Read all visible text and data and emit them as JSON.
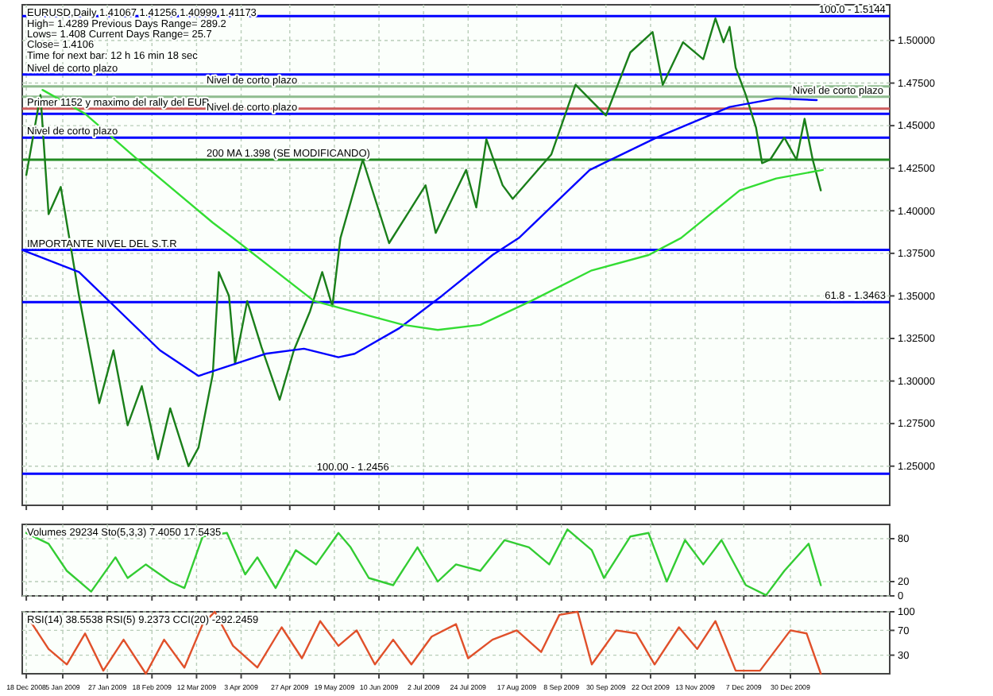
{
  "chart_data": [
    {
      "type": "line",
      "title": "EURUSD,Daily 1.41067 1.41256 1.40999 1.41173",
      "annotations": [
        "High= 1.4289   Previous Days Range= 289.2",
        "Lows= 1.408   Current Days Range= 25.7",
        "Close= 1.4106",
        "Time for next bar: 12 h 16 min 18 sec",
        {
          "text": "100.0 - 1.5144",
          "x": "2010-02-15",
          "y": 1.5144
        },
        {
          "text": "61.8 - 1.3463",
          "x": "2010-02-15",
          "y": 1.3463
        },
        {
          "text": "100.00 - 1.2456",
          "x": "2009-06-15",
          "y": 1.2456
        }
      ],
      "x": [
        "2008-12-18",
        "2008-12-25",
        "2008-12-29",
        "2009-01-04",
        "2009-01-13",
        "2009-01-23",
        "2009-01-30",
        "2009-02-06",
        "2009-02-13",
        "2009-02-21",
        "2009-02-27",
        "2009-03-08",
        "2009-03-13",
        "2009-03-20",
        "2009-03-23",
        "2009-03-28",
        "2009-03-31",
        "2009-04-06",
        "2009-04-13",
        "2009-04-22",
        "2009-04-29",
        "2009-05-07",
        "2009-05-13",
        "2009-05-18",
        "2009-05-22",
        "2009-06-02",
        "2009-06-15",
        "2009-07-03",
        "2009-07-08",
        "2009-07-23",
        "2009-07-28",
        "2009-08-02",
        "2009-08-10",
        "2009-08-15",
        "2009-09-03",
        "2009-09-15",
        "2009-09-30",
        "2009-10-12",
        "2009-10-23",
        "2009-10-28",
        "2009-11-07",
        "2009-11-17",
        "2009-11-23",
        "2009-11-27",
        "2009-11-30",
        "2009-12-03",
        "2009-12-08",
        "2009-12-13",
        "2009-12-16",
        "2009-12-20",
        "2009-12-27",
        "2010-01-02",
        "2010-01-06",
        "2010-01-10",
        "2010-01-14"
      ],
      "series": [
        {
          "color": "#1a7f1a",
          "values": [
            1.421,
            1.468,
            1.398,
            1.414,
            1.35,
            1.287,
            1.318,
            1.274,
            1.297,
            1.254,
            1.284,
            1.25,
            1.261,
            1.304,
            1.364,
            1.35,
            1.31,
            1.347,
            1.32,
            1.289,
            1.318,
            1.341,
            1.364,
            1.344,
            1.384,
            1.43,
            1.381,
            1.415,
            1.387,
            1.424,
            1.402,
            1.442,
            1.415,
            1.407,
            1.433,
            1.474,
            1.456,
            1.493,
            1.505,
            1.474,
            1.499,
            1.489,
            1.513,
            1.499,
            1.508,
            1.484,
            1.468,
            1.449,
            1.428,
            1.43,
            1.443,
            1.43,
            1.454,
            1.43,
            1.412
          ]
        },
        {
          "color": "#0000ff",
          "x": [
            "2008-12-16",
            "2009-01-13",
            "2009-02-22",
            "2009-03-13",
            "2009-04-15",
            "2009-05-04",
            "2009-05-21",
            "2009-05-29",
            "2009-06-20",
            "2009-07-11",
            "2009-08-05",
            "2009-08-18",
            "2009-09-22",
            "2009-10-25",
            "2009-11-30",
            "2009-12-23",
            "2010-01-12"
          ],
          "values": [
            1.377,
            1.364,
            1.318,
            1.303,
            1.316,
            1.319,
            1.314,
            1.316,
            1.331,
            1.35,
            1.374,
            1.384,
            1.424,
            1.443,
            1.461,
            1.466,
            1.465
          ]
        },
        {
          "color": "#33dd33",
          "x": [
            "2008-12-26",
            "2009-01-16",
            "2009-02-13",
            "2009-03-20",
            "2009-03-30",
            "2009-05-09",
            "2009-06-22",
            "2009-07-09",
            "2009-07-30",
            "2009-08-24",
            "2009-09-23",
            "2009-10-21",
            "2009-11-06",
            "2009-12-05",
            "2009-12-23",
            "2010-01-15"
          ],
          "values": [
            1.471,
            1.457,
            1.428,
            1.393,
            1.384,
            1.347,
            1.333,
            1.33,
            1.333,
            1.347,
            1.365,
            1.374,
            1.384,
            1.412,
            1.419,
            1.424
          ]
        }
      ],
      "xlim": [
        "2008-12-16",
        "2010-02-17"
      ],
      "xticks": [
        {
          "value": "2008-12-18",
          "label": null
        },
        {
          "value": "2009-01-05",
          "label": null
        },
        {
          "value": "2009-01-27",
          "label": null
        },
        {
          "value": "2009-02-18",
          "label": null
        },
        {
          "value": "2009-03-12",
          "label": null
        },
        {
          "value": "2009-04-03",
          "label": null
        },
        {
          "value": "2009-04-27",
          "label": null
        },
        {
          "value": "2009-05-19",
          "label": null
        },
        {
          "value": "2009-06-10",
          "label": null
        },
        {
          "value": "2009-07-02",
          "label": null
        },
        {
          "value": "2009-07-24",
          "label": null
        },
        {
          "value": "2009-08-17",
          "label": null
        },
        {
          "value": "2009-09-08",
          "label": null
        },
        {
          "value": "2009-09-30",
          "label": null
        },
        {
          "value": "2009-10-22",
          "label": null
        },
        {
          "value": "2009-11-13",
          "label": null
        },
        {
          "value": "2009-12-07",
          "label": null
        },
        {
          "value": "2009-12-30",
          "label": null
        }
      ],
      "ylim": [
        1.227,
        1.521
      ],
      "yticks": [
        {
          "value": 1.25,
          "label": "1.25000"
        },
        {
          "value": 1.275,
          "label": "1.27500"
        },
        {
          "value": 1.3,
          "label": "1.30000"
        },
        {
          "value": 1.325,
          "label": "1.32500"
        },
        {
          "value": 1.35,
          "label": "1.35000"
        },
        {
          "value": 1.375,
          "label": "1.37500"
        },
        {
          "value": 1.4,
          "label": "1.40000"
        },
        {
          "value": 1.425,
          "label": "1.42500"
        },
        {
          "value": 1.45,
          "label": "1.45000"
        },
        {
          "value": 1.475,
          "label": "1.47500"
        },
        {
          "value": 1.5,
          "label": "1.50000"
        }
      ],
      "ref_lines": [
        {
          "axis": "y",
          "value": 1.48,
          "label": "Nivel de corto plazo",
          "color": "#0000ff"
        },
        {
          "axis": "y",
          "value": 1.473,
          "label": "Nivel de corto plazo",
          "color": "#8fbc8f"
        },
        {
          "axis": "y",
          "value": 1.467,
          "label": "Nivel de corto plazo",
          "color": "#8fbc8f"
        },
        {
          "axis": "y",
          "value": 1.46,
          "label": "Primer 1152 y maximo del rally del EUR",
          "color": "#cd5c5c"
        },
        {
          "axis": "y",
          "value": 1.457,
          "label": "Nivel de corto plazo",
          "color": "#0000ff"
        },
        {
          "axis": "y",
          "value": 1.5144,
          "color": "#0000ff"
        },
        {
          "axis": "y",
          "value": 1.443,
          "label": "Nivel de corto plazo",
          "color": "#0000ff"
        },
        {
          "axis": "y",
          "value": 1.43,
          "label": "200 MA 1.398 (SE MODIFICANDO)",
          "color": "#228b22"
        },
        {
          "axis": "y",
          "value": 1.3463,
          "color": "#0000ff"
        },
        {
          "axis": "y",
          "value": 1.377,
          "label": "IMPORTANTE NIVEL DEL S.T.R",
          "color": "#0000ff"
        },
        {
          "axis": "y",
          "value": 1.2456,
          "color": "#0000ff"
        }
      ],
      "grid": true,
      "tick_labels": "y",
      "line_style": "solid"
    },
    {
      "type": "line",
      "title": "Volumes 29234 Sto(5,3,3) 7.4050 17.5435",
      "x": [
        "2008-12-18",
        "2008-12-29",
        "2009-01-07",
        "2009-01-19",
        "2009-01-31",
        "2009-02-06",
        "2009-02-15",
        "2009-02-27",
        "2009-03-06",
        "2009-03-15",
        "2009-03-27",
        "2009-04-05",
        "2009-04-11",
        "2009-04-20",
        "2009-04-30",
        "2009-05-10",
        "2009-05-21",
        "2009-05-27",
        "2009-06-05",
        "2009-06-17",
        "2009-06-29",
        "2009-07-09",
        "2009-07-18",
        "2009-07-30",
        "2009-08-11",
        "2009-08-23",
        "2009-09-02",
        "2009-09-11",
        "2009-09-23",
        "2009-09-29",
        "2009-10-12",
        "2009-10-21",
        "2009-10-30",
        "2009-11-08",
        "2009-11-17",
        "2009-11-26",
        "2009-12-08",
        "2009-12-18",
        "2009-12-27",
        "2010-01-08",
        "2010-01-14"
      ],
      "series": [
        {
          "color": "#33cc33",
          "values": [
            88,
            73,
            35,
            6,
            54,
            25,
            44,
            20,
            11,
            83,
            88,
            30,
            54,
            11,
            64,
            44,
            88,
            68,
            25,
            15,
            68,
            20,
            44,
            35,
            78,
            68,
            44,
            93,
            64,
            25,
            83,
            88,
            20,
            78,
            44,
            78,
            15,
            1,
            35,
            73,
            15
          ]
        }
      ],
      "xlim": [
        "2008-12-16",
        "2010-02-17"
      ],
      "xticks": [
        {
          "value": "2008-12-18",
          "label": null
        },
        {
          "value": "2009-01-05",
          "label": null
        },
        {
          "value": "2009-01-27",
          "label": null
        },
        {
          "value": "2009-02-18",
          "label": null
        },
        {
          "value": "2009-03-12",
          "label": null
        },
        {
          "value": "2009-04-03",
          "label": null
        },
        {
          "value": "2009-04-27",
          "label": null
        },
        {
          "value": "2009-05-19",
          "label": null
        },
        {
          "value": "2009-06-10",
          "label": null
        },
        {
          "value": "2009-07-02",
          "label": null
        },
        {
          "value": "2009-07-24",
          "label": null
        },
        {
          "value": "2009-08-17",
          "label": null
        },
        {
          "value": "2009-09-08",
          "label": null
        },
        {
          "value": "2009-09-30",
          "label": null
        },
        {
          "value": "2009-10-22",
          "label": null
        },
        {
          "value": "2009-11-13",
          "label": null
        },
        {
          "value": "2009-12-07",
          "label": null
        },
        {
          "value": "2009-12-30",
          "label": null
        }
      ],
      "ylim": [
        0,
        100
      ],
      "yticks": [
        0,
        20,
        80
      ],
      "grid": true,
      "tick_labels": "y",
      "line_style": "solid"
    },
    {
      "type": "line",
      "title": "RSI(14) 38.5538 RSI(5) 9.2373 CCI(20) -292.2459",
      "x": [
        "2008-12-19",
        "2008-12-29",
        "2009-01-07",
        "2009-01-16",
        "2009-01-25",
        "2009-02-04",
        "2009-02-15",
        "2009-02-24",
        "2009-03-06",
        "2009-03-15",
        "2009-03-21",
        "2009-03-30",
        "2009-04-11",
        "2009-04-23",
        "2009-05-03",
        "2009-05-12",
        "2009-05-21",
        "2009-05-30",
        "2009-06-08",
        "2009-06-17",
        "2009-06-26",
        "2009-07-06",
        "2009-07-18",
        "2009-07-24",
        "2009-08-05",
        "2009-08-17",
        "2009-08-29",
        "2009-09-07",
        "2009-09-16",
        "2009-09-23",
        "2009-10-05",
        "2009-10-15",
        "2009-10-24",
        "2009-11-05",
        "2009-11-14",
        "2009-11-23",
        "2009-12-03",
        "2009-12-15",
        "2009-12-30",
        "2010-01-07",
        "2010-01-14"
      ],
      "series": [
        {
          "color": "#e0502a",
          "values": [
            90,
            40,
            15,
            65,
            5,
            55,
            0,
            55,
            10,
            80,
            100,
            45,
            10,
            75,
            25,
            85,
            45,
            70,
            15,
            55,
            15,
            60,
            80,
            25,
            55,
            70,
            35,
            95,
            100,
            15,
            70,
            65,
            15,
            75,
            40,
            85,
            5,
            5,
            70,
            65,
            0
          ]
        }
      ],
      "xlim": [
        "2008-12-16",
        "2010-02-17"
      ],
      "xticks": [
        {
          "value": "2008-12-18",
          "label": "18 Dec 2008"
        },
        {
          "value": "2009-01-05",
          "label": "5 Jan 2009"
        },
        {
          "value": "2009-01-27",
          "label": "27 Jan 2009"
        },
        {
          "value": "2009-02-18",
          "label": "18 Feb 2009"
        },
        {
          "value": "2009-03-12",
          "label": "12 Mar 2009"
        },
        {
          "value": "2009-04-03",
          "label": "3 Apr 2009"
        },
        {
          "value": "2009-04-27",
          "label": "27 Apr 2009"
        },
        {
          "value": "2009-05-19",
          "label": "19 May 2009"
        },
        {
          "value": "2009-06-10",
          "label": "10 Jun 2009"
        },
        {
          "value": "2009-07-02",
          "label": "2 Jul 2009"
        },
        {
          "value": "2009-07-24",
          "label": "24 Jul 2009"
        },
        {
          "value": "2009-08-17",
          "label": "17 Aug 2009"
        },
        {
          "value": "2009-09-08",
          "label": "8 Sep 2009"
        },
        {
          "value": "2009-09-30",
          "label": "30 Sep 2009"
        },
        {
          "value": "2009-10-22",
          "label": "22 Oct 2009"
        },
        {
          "value": "2009-11-13",
          "label": "13 Nov 2009"
        },
        {
          "value": "2009-12-07",
          "label": "7 Dec 2009"
        },
        {
          "value": "2009-12-30",
          "label": "30 Dec 2009"
        }
      ],
      "ylim": [
        0,
        100
      ],
      "yticks": [
        30,
        70,
        100
      ],
      "grid": true,
      "line_style": "solid"
    }
  ]
}
